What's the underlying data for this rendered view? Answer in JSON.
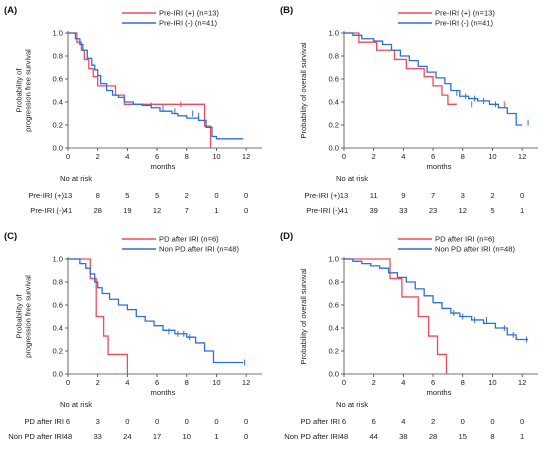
{
  "chart_data": [
    {
      "type": "line",
      "panel_label": "(A)",
      "ylabel": [
        "Probability of",
        "progression free survival"
      ],
      "xlabel": "months",
      "xlim": [
        0,
        12.8
      ],
      "ylim": [
        0,
        1.0
      ],
      "xticks": [
        0,
        2,
        4,
        6,
        8,
        10,
        12
      ],
      "yticks": [
        0,
        0.2,
        0.4,
        0.6,
        0.8,
        1.0
      ],
      "series": [
        {
          "name": "Pre-IRI (+) (n=13)",
          "color": "#ee4b5e",
          "x": [
            0,
            0.6,
            0.9,
            1.1,
            1.4,
            1.7,
            2.0,
            2.2,
            2.6,
            3.2,
            3.8,
            5.0,
            5.7,
            9.2,
            9.6
          ],
          "y": [
            1.0,
            0.92,
            0.85,
            0.77,
            0.69,
            0.62,
            0.54,
            0.54,
            0.54,
            0.46,
            0.38,
            0.38,
            0.38,
            0.19,
            0.0
          ],
          "censor_x": [
            7.6
          ],
          "censor_y": [
            0.38
          ]
        },
        {
          "name": "Pre-IRI (-) (n=41)",
          "color": "#2f6fd6",
          "x": [
            0,
            0.5,
            0.8,
            1.0,
            1.3,
            1.6,
            1.8,
            2.0,
            2.2,
            2.6,
            3.0,
            3.4,
            3.8,
            4.4,
            5.0,
            5.6,
            6.2,
            7.0,
            7.4,
            8.0,
            8.8,
            9.3,
            9.7,
            10.0,
            11.8
          ],
          "y": [
            1.0,
            0.95,
            0.9,
            0.85,
            0.78,
            0.72,
            0.68,
            0.63,
            0.56,
            0.5,
            0.46,
            0.44,
            0.4,
            0.38,
            0.37,
            0.35,
            0.32,
            0.3,
            0.28,
            0.26,
            0.24,
            0.18,
            0.1,
            0.08,
            0.08
          ],
          "censor_x": [
            5.6,
            6.4,
            7.2,
            8.4,
            8.8
          ],
          "censor_y": [
            0.37,
            0.35,
            0.32,
            0.3,
            0.28
          ]
        }
      ],
      "risk_table": {
        "title": "No at risk",
        "rows": [
          {
            "label": "Pre-IRI (+)",
            "values": [
              "13",
              "8",
              "5",
              "5",
              "2",
              "0",
              "0"
            ]
          },
          {
            "label": "Pre-IRI (-)",
            "values": [
              "41",
              "28",
              "19",
              "12",
              "7",
              "1",
              "0"
            ]
          }
        ]
      }
    },
    {
      "type": "line",
      "panel_label": "(B)",
      "ylabel": [
        "Probability of overall survival"
      ],
      "xlabel": "months",
      "xlim": [
        0,
        12.8
      ],
      "ylim": [
        0,
        1.0
      ],
      "xticks": [
        0,
        2,
        4,
        6,
        8,
        10,
        12
      ],
      "yticks": [
        0,
        0.2,
        0.4,
        0.6,
        0.8,
        1.0
      ],
      "series": [
        {
          "name": "Pre-IRI (+) (n=13)",
          "color": "#ee4b5e",
          "x": [
            0,
            1.0,
            2.2,
            3.4,
            4.2,
            5.4,
            6.0,
            6.6,
            7.0,
            7.6
          ],
          "y": [
            1.0,
            0.92,
            0.85,
            0.77,
            0.69,
            0.62,
            0.54,
            0.46,
            0.38,
            0.38
          ],
          "censor_x": [
            8.6,
            10.8
          ],
          "censor_y": [
            0.38,
            0.38
          ]
        },
        {
          "name": "Pre-IRI (-) (n=41)",
          "color": "#2f6fd6",
          "x": [
            0,
            0.6,
            1.2,
            2.0,
            2.6,
            3.2,
            3.8,
            4.4,
            5.0,
            5.6,
            6.2,
            6.8,
            7.2,
            7.8,
            8.4,
            9.0,
            9.8,
            10.4,
            11.0,
            11.6,
            12.0
          ],
          "y": [
            1.0,
            0.98,
            0.95,
            0.93,
            0.9,
            0.85,
            0.8,
            0.76,
            0.71,
            0.66,
            0.61,
            0.56,
            0.5,
            0.45,
            0.43,
            0.41,
            0.38,
            0.35,
            0.3,
            0.2,
            0.2
          ],
          "censor_x": [
            7.6,
            8.2,
            8.8,
            9.4,
            10.2,
            12.4
          ],
          "censor_y": [
            0.48,
            0.45,
            0.43,
            0.41,
            0.38,
            0.22
          ]
        }
      ],
      "risk_table": {
        "title": "No at risk",
        "rows": [
          {
            "label": "Pre-IRI (+)",
            "values": [
              "13",
              "11",
              "9",
              "7",
              "3",
              "2",
              "0"
            ]
          },
          {
            "label": "Pre-IRI (-)",
            "values": [
              "41",
              "39",
              "33",
              "23",
              "12",
              "5",
              "1"
            ]
          }
        ]
      }
    },
    {
      "type": "line",
      "panel_label": "(C)",
      "ylabel": [
        "Probability of",
        "progression free survival"
      ],
      "xlabel": "months",
      "xlim": [
        0,
        12.8
      ],
      "ylim": [
        0,
        1.0
      ],
      "xticks": [
        0,
        2,
        4,
        6,
        8,
        10,
        12
      ],
      "yticks": [
        0,
        0.2,
        0.4,
        0.6,
        0.8,
        1.0
      ],
      "series": [
        {
          "name": "PD after IRI (n=6)",
          "color": "#ee4b5e",
          "x": [
            0,
            1.5,
            1.9,
            2.4,
            2.7,
            4.0
          ],
          "y": [
            1.0,
            0.83,
            0.5,
            0.33,
            0.17,
            0.0
          ],
          "censor_x": [],
          "censor_y": []
        },
        {
          "name": "Non PD after IRI (n=48)",
          "color": "#2f6fd6",
          "x": [
            0,
            0.8,
            1.2,
            1.5,
            1.8,
            2.0,
            2.3,
            2.8,
            3.4,
            4.0,
            4.6,
            5.2,
            5.8,
            6.4,
            7.2,
            8.0,
            8.6,
            9.2,
            9.8,
            11.8
          ],
          "y": [
            1.0,
            0.96,
            0.92,
            0.87,
            0.8,
            0.75,
            0.7,
            0.65,
            0.6,
            0.56,
            0.5,
            0.46,
            0.42,
            0.38,
            0.35,
            0.32,
            0.27,
            0.2,
            0.1,
            0.1
          ],
          "censor_x": [
            6.8,
            7.4,
            7.8,
            8.2,
            11.9
          ],
          "censor_y": [
            0.37,
            0.35,
            0.35,
            0.32,
            0.1
          ]
        }
      ],
      "risk_table": {
        "title": "No at risk",
        "rows": [
          {
            "label": "PD after IRI",
            "values": [
              "6",
              "3",
              "0",
              "0",
              "0",
              "0",
              "0"
            ]
          },
          {
            "label": "Non PD after IRI",
            "values": [
              "48",
              "33",
              "24",
              "17",
              "10",
              "1",
              "0"
            ]
          }
        ]
      }
    },
    {
      "type": "line",
      "panel_label": "(D)",
      "ylabel": [
        "Probability of overall survival"
      ],
      "xlabel": "months",
      "xlim": [
        0,
        12.8
      ],
      "ylim": [
        0,
        1.0
      ],
      "xticks": [
        0,
        2,
        4,
        6,
        8,
        10,
        12
      ],
      "yticks": [
        0,
        0.2,
        0.4,
        0.6,
        0.8,
        1.0
      ],
      "series": [
        {
          "name": "PD after IRI (n=6)",
          "color": "#ee4b5e",
          "x": [
            0,
            3.1,
            3.9,
            5.0,
            5.7,
            6.3,
            6.9
          ],
          "y": [
            1.0,
            0.83,
            0.67,
            0.5,
            0.33,
            0.17,
            0.0
          ],
          "censor_x": [],
          "censor_y": []
        },
        {
          "name": "Non PD after IRI (n=48)",
          "color": "#2f6fd6",
          "x": [
            0,
            0.6,
            1.2,
            1.8,
            2.4,
            3.0,
            3.6,
            4.2,
            4.8,
            5.4,
            6.0,
            6.6,
            7.2,
            7.8,
            8.6,
            9.4,
            10.2,
            11.0,
            11.6,
            12.4
          ],
          "y": [
            1.0,
            0.98,
            0.96,
            0.94,
            0.92,
            0.88,
            0.84,
            0.8,
            0.74,
            0.68,
            0.62,
            0.57,
            0.53,
            0.5,
            0.47,
            0.44,
            0.4,
            0.34,
            0.3,
            0.3
          ],
          "censor_x": [
            7.4,
            8.0,
            8.8,
            9.6,
            10.8,
            11.4,
            12.3
          ],
          "censor_y": [
            0.53,
            0.5,
            0.47,
            0.47,
            0.4,
            0.34,
            0.3
          ]
        }
      ],
      "risk_table": {
        "title": "No at risk",
        "rows": [
          {
            "label": "PD after IRI",
            "values": [
              "6",
              "6",
              "4",
              "2",
              "0",
              "0",
              "0"
            ]
          },
          {
            "label": "Non PD after IRI",
            "values": [
              "48",
              "44",
              "38",
              "28",
              "15",
              "8",
              "1"
            ]
          }
        ]
      }
    }
  ]
}
